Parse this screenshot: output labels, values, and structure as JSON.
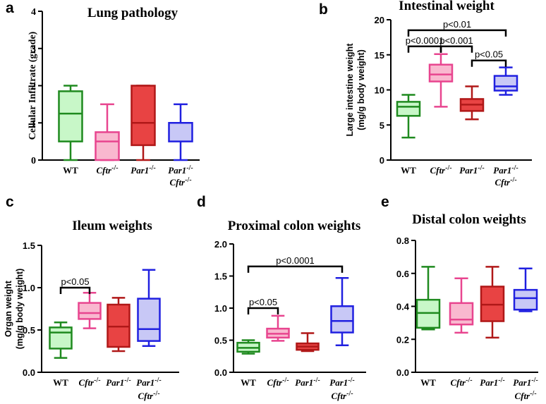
{
  "colors": {
    "wt": {
      "stroke": "#1f8a1f",
      "fill": "#c8f7c8"
    },
    "cftr": {
      "stroke": "#e8458f",
      "fill": "#f9b8cf"
    },
    "par1": {
      "stroke": "#b01818",
      "fill": "#e84343"
    },
    "par1cftr": {
      "stroke": "#2020e0",
      "fill": "#c8c8f6"
    }
  },
  "categories": [
    {
      "key": "wt",
      "main": "WT",
      "sup": ""
    },
    {
      "key": "cftr",
      "main": "Cftr",
      "sup": "-/-"
    },
    {
      "key": "par1",
      "main": "Par1",
      "sup": "-/-"
    },
    {
      "key": "par1cftr",
      "main": "Par1",
      "sup": "-/-",
      "main2": "Cftr",
      "sup2": "-/-"
    }
  ],
  "chart_data": [
    {
      "id": "lung",
      "letter": "a",
      "type": "box",
      "title": "Lung pathology",
      "ylabel": "Cellular Infiltrate (grade)",
      "ylim": [
        0,
        4
      ],
      "ticks": [
        "0",
        "1",
        "2",
        "3",
        "4"
      ],
      "boxes": [
        {
          "min": 0,
          "q1": 0.5,
          "median": 1.25,
          "q3": 1.85,
          "max": 2
        },
        {
          "min": 0,
          "q1": 0,
          "median": 0.5,
          "q3": 0.75,
          "max": 1.5
        },
        {
          "min": 0,
          "q1": 0.4,
          "median": 1,
          "q3": 2,
          "max": 2
        },
        {
          "min": 0,
          "q1": 0.5,
          "median": 1,
          "q3": 1,
          "max": 1.5
        }
      ],
      "brackets": []
    },
    {
      "id": "intestinal",
      "letter": "b",
      "type": "box",
      "title": "Intestinal weight",
      "ylabel": "Large intestine weight",
      "ylabel2": "(mg/g body weight)",
      "ylim": [
        0,
        20
      ],
      "ticks": [
        "0",
        "5",
        "10",
        "15",
        "20"
      ],
      "boxes": [
        {
          "min": 3.2,
          "q1": 6.3,
          "median": 7.6,
          "q3": 8.3,
          "max": 9.3
        },
        {
          "min": 7.6,
          "q1": 11.2,
          "median": 12.2,
          "q3": 13.6,
          "max": 15.1
        },
        {
          "min": 5.8,
          "q1": 7,
          "median": 7.9,
          "q3": 8.7,
          "max": 10.5
        },
        {
          "min": 9.3,
          "q1": 9.9,
          "median": 10.5,
          "q3": 12,
          "max": 13.2
        }
      ],
      "brackets": [
        {
          "from": 0,
          "to": 3,
          "y": 18.5,
          "label": "p<0.01"
        },
        {
          "from": 0,
          "to": 1,
          "y": 16.2,
          "label": "p<0.0001"
        },
        {
          "from": 1,
          "to": 2,
          "y": 16.2,
          "label": "p<0.001"
        },
        {
          "from": 2,
          "to": 3,
          "y": 14.2,
          "label": "p<0.05"
        }
      ]
    },
    {
      "id": "ileum",
      "letter": "c",
      "type": "box",
      "title": "Ileum weights",
      "ylabel": "Organ weight",
      "ylabel2": "(mg/g body weight)",
      "ylim": [
        0,
        1.5
      ],
      "ticks": [
        "0.0",
        "0.5",
        "1.0",
        "1.5"
      ],
      "boxes": [
        {
          "min": 0.17,
          "q1": 0.28,
          "median": 0.47,
          "q3": 0.53,
          "max": 0.59
        },
        {
          "min": 0.52,
          "q1": 0.63,
          "median": 0.7,
          "q3": 0.82,
          "max": 0.94
        },
        {
          "min": 0.25,
          "q1": 0.3,
          "median": 0.54,
          "q3": 0.8,
          "max": 0.88
        },
        {
          "min": 0.31,
          "q1": 0.37,
          "median": 0.51,
          "q3": 0.87,
          "max": 1.21
        }
      ],
      "brackets": [
        {
          "from": 0,
          "to": 1,
          "y": 1.0,
          "label": "p<0.05"
        }
      ]
    },
    {
      "id": "proximal",
      "letter": "d",
      "type": "box",
      "title": "Proximal colon weights",
      "ylabel": "",
      "ylim": [
        0,
        2.0
      ],
      "ticks": [
        "0.0",
        "0.5",
        "1.0",
        "1.5",
        "2.0"
      ],
      "boxes": [
        {
          "min": 0.29,
          "q1": 0.32,
          "median": 0.38,
          "q3": 0.46,
          "max": 0.5
        },
        {
          "min": 0.49,
          "q1": 0.54,
          "median": 0.6,
          "q3": 0.68,
          "max": 0.88
        },
        {
          "min": 0.33,
          "q1": 0.35,
          "median": 0.4,
          "q3": 0.45,
          "max": 0.61
        },
        {
          "min": 0.42,
          "q1": 0.62,
          "median": 0.8,
          "q3": 1.03,
          "max": 1.47
        }
      ],
      "brackets": [
        {
          "from": 0,
          "to": 3,
          "y": 1.65,
          "label": "p<0.0001"
        },
        {
          "from": 0,
          "to": 1,
          "y": 1.0,
          "label": "p<0.05"
        }
      ]
    },
    {
      "id": "distal",
      "letter": "e",
      "type": "box",
      "title": "Distal colon weights",
      "ylabel": "",
      "ylim": [
        0,
        0.8
      ],
      "ticks": [
        "0.0",
        "0.2",
        "0.4",
        "0.6",
        "0.8"
      ],
      "boxes": [
        {
          "min": 0.26,
          "q1": 0.27,
          "median": 0.36,
          "q3": 0.44,
          "max": 0.64
        },
        {
          "min": 0.24,
          "q1": 0.29,
          "median": 0.32,
          "q3": 0.42,
          "max": 0.57
        },
        {
          "min": 0.21,
          "q1": 0.31,
          "median": 0.41,
          "q3": 0.52,
          "max": 0.64
        },
        {
          "min": 0.37,
          "q1": 0.38,
          "median": 0.45,
          "q3": 0.5,
          "max": 0.63
        }
      ],
      "brackets": []
    }
  ]
}
